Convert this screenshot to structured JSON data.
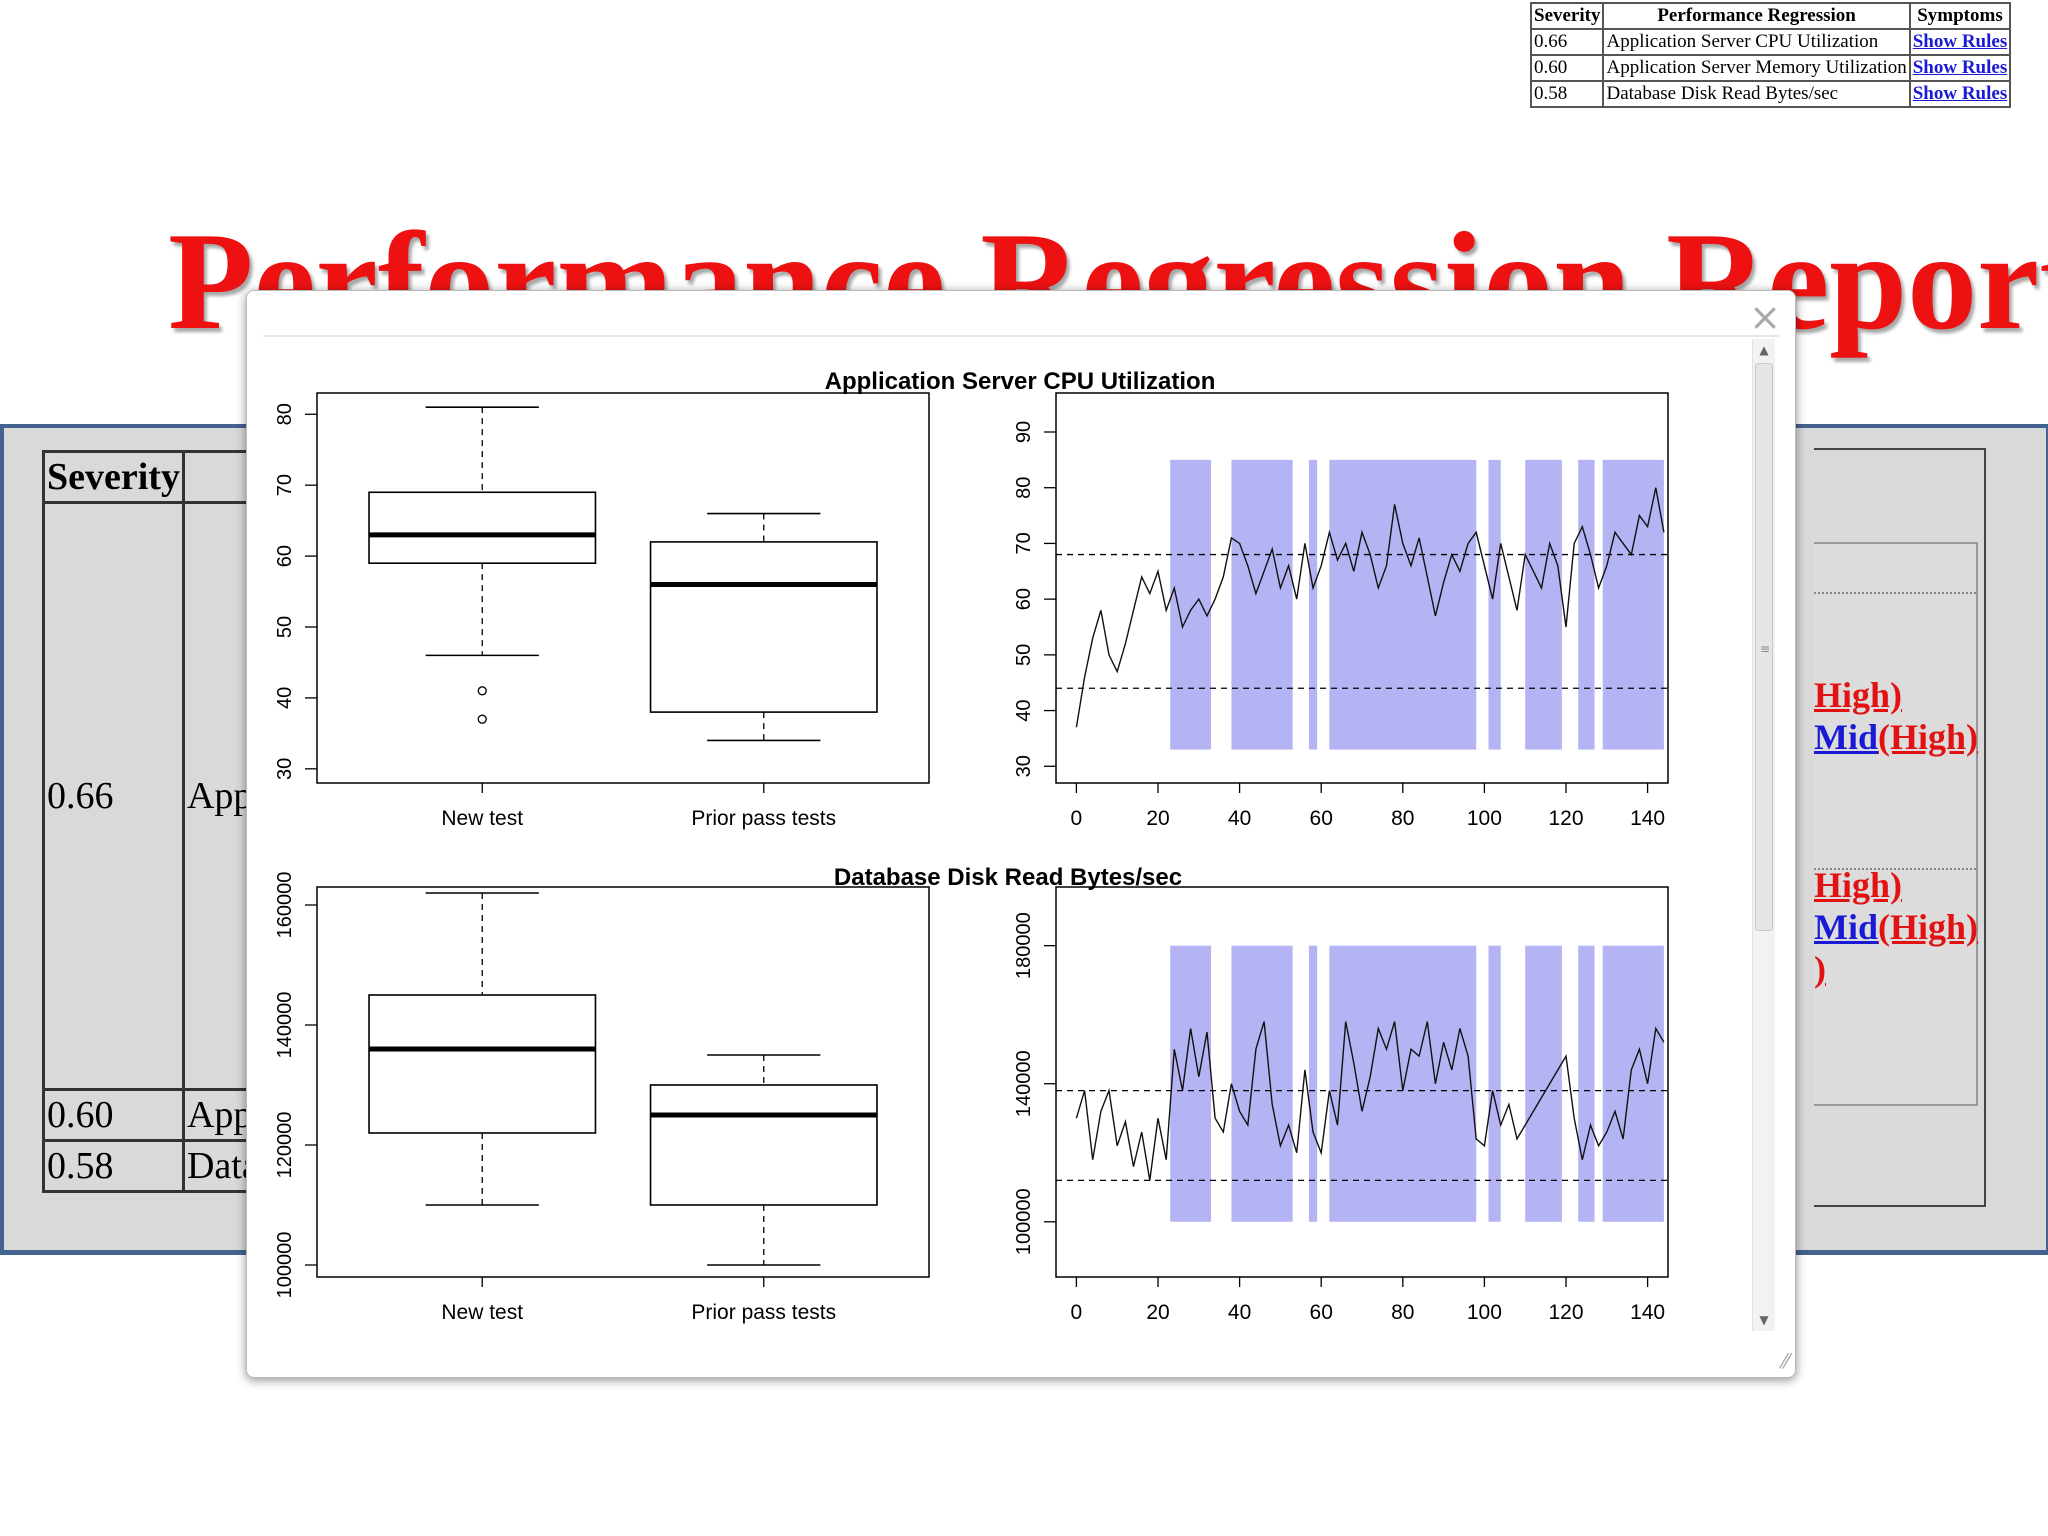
{
  "mini_table": {
    "headers": [
      "Severity",
      "Performance Regression",
      "Symptoms"
    ],
    "rows": [
      {
        "severity": "0.66",
        "name": "Application Server CPU Utilization",
        "link": "Show Rules"
      },
      {
        "severity": "0.60",
        "name": "Application Server Memory Utilization",
        "link": "Show Rules"
      },
      {
        "severity": "0.58",
        "name": "Database Disk Read Bytes/sec",
        "link": "Show Rules"
      }
    ]
  },
  "page_title": "Performance Regression Report",
  "main_table": {
    "header_severity": "Severity",
    "rows": [
      {
        "severity": "0.66",
        "name_fragment": "App"
      },
      {
        "severity": "0.60",
        "name_fragment": "App"
      },
      {
        "severity": "0.58",
        "name_fragment": "Data"
      }
    ]
  },
  "right_links": [
    {
      "text_a": "High)"
    },
    {
      "text_a": "Mid",
      "text_b": "(High)"
    },
    {
      "text_a": "High)"
    },
    {
      "text_a": "Mid",
      "text_b": "(High)"
    },
    {
      "text_a": ")"
    }
  ],
  "dialog": {
    "close_glyph": "×",
    "scroll_up_glyph": "▲",
    "scroll_down_glyph": "▼",
    "grip_glyph": "≡",
    "resize_glyph": "⁄⁄"
  },
  "colors": {
    "title_red": "#ee1111",
    "link_blue": "#1a1ad6",
    "shade": "#b4b4f4",
    "panel_border": "#44628f"
  },
  "chart_data": [
    {
      "type": "boxplot",
      "title": "Application Server CPU Utilization",
      "categories": [
        "New test",
        "Prior pass tests"
      ],
      "boxes": [
        {
          "min": 46,
          "q1": 59,
          "median": 63,
          "q3": 69,
          "max": 81,
          "outliers": [
            41,
            37
          ]
        },
        {
          "min": 34,
          "q1": 38,
          "median": 56,
          "q3": 62,
          "max": 66,
          "outliers": []
        }
      ],
      "ylim": [
        28,
        83
      ],
      "yticks": [
        30,
        40,
        50,
        60,
        70,
        80
      ]
    },
    {
      "type": "line",
      "title": "Application Server CPU Utilization",
      "xlim": [
        -5,
        145
      ],
      "ylim": [
        27,
        97
      ],
      "xticks": [
        0,
        20,
        40,
        60,
        80,
        100,
        120,
        140
      ],
      "yticks": [
        30,
        40,
        50,
        60,
        70,
        80,
        90
      ],
      "hlines": [
        68,
        44
      ],
      "shaded_ranges": [
        [
          23,
          33
        ],
        [
          38,
          53
        ],
        [
          57,
          59
        ],
        [
          62,
          98
        ],
        [
          101,
          104
        ],
        [
          110,
          119
        ],
        [
          123,
          127
        ],
        [
          129,
          144
        ]
      ],
      "shade_y": [
        33,
        85
      ],
      "x": [
        0,
        2,
        4,
        6,
        8,
        10,
        12,
        14,
        16,
        18,
        20,
        22,
        24,
        26,
        28,
        30,
        32,
        34,
        36,
        38,
        40,
        42,
        44,
        46,
        48,
        50,
        52,
        54,
        56,
        58,
        60,
        62,
        64,
        66,
        68,
        70,
        72,
        74,
        76,
        78,
        80,
        82,
        84,
        86,
        88,
        90,
        92,
        94,
        96,
        98,
        100,
        102,
        104,
        106,
        108,
        110,
        112,
        114,
        116,
        118,
        120,
        122,
        124,
        126,
        128,
        130,
        132,
        134,
        136,
        138,
        140,
        142,
        144
      ],
      "y": [
        37,
        46,
        53,
        58,
        50,
        47,
        52,
        58,
        64,
        61,
        65,
        58,
        62,
        55,
        58,
        60,
        57,
        60,
        64,
        71,
        70,
        66,
        61,
        65,
        69,
        62,
        66,
        60,
        70,
        62,
        66,
        72,
        67,
        70,
        65,
        72,
        68,
        62,
        66,
        77,
        70,
        66,
        71,
        64,
        57,
        63,
        68,
        65,
        70,
        72,
        66,
        60,
        70,
        64,
        58,
        68,
        65,
        62,
        70,
        66,
        55,
        70,
        73,
        68,
        62,
        66,
        72,
        70,
        68,
        75,
        73,
        80,
        72
      ]
    },
    {
      "type": "boxplot",
      "title": "Database Disk Read Bytes/sec",
      "categories": [
        "New test",
        "Prior pass tests"
      ],
      "boxes": [
        {
          "min": 110000,
          "q1": 122000,
          "median": 136000,
          "q3": 145000,
          "max": 162000,
          "outliers": []
        },
        {
          "min": 100000,
          "q1": 110000,
          "median": 125000,
          "q3": 130000,
          "max": 135000,
          "outliers": []
        }
      ],
      "ylim": [
        98000,
        163000
      ],
      "yticks": [
        100000,
        120000,
        140000,
        160000
      ]
    },
    {
      "type": "line",
      "title": "Database Disk Read Bytes/sec",
      "xlim": [
        -5,
        145
      ],
      "ylim": [
        84000,
        197000
      ],
      "xticks": [
        0,
        20,
        40,
        60,
        80,
        100,
        120,
        140
      ],
      "yticks": [
        100000,
        140000,
        180000
      ],
      "hlines": [
        138000,
        112000
      ],
      "shaded_ranges": [
        [
          23,
          33
        ],
        [
          38,
          53
        ],
        [
          57,
          59
        ],
        [
          62,
          98
        ],
        [
          101,
          104
        ],
        [
          110,
          119
        ],
        [
          123,
          127
        ],
        [
          129,
          144
        ]
      ],
      "shade_y": [
        100000,
        180000
      ],
      "x": [
        0,
        2,
        4,
        6,
        8,
        10,
        12,
        14,
        16,
        18,
        20,
        22,
        24,
        26,
        28,
        30,
        32,
        34,
        36,
        38,
        40,
        42,
        44,
        46,
        48,
        50,
        52,
        54,
        56,
        58,
        60,
        62,
        64,
        66,
        68,
        70,
        72,
        74,
        76,
        78,
        80,
        82,
        84,
        86,
        88,
        90,
        92,
        94,
        96,
        98,
        100,
        102,
        104,
        106,
        108,
        120,
        122,
        124,
        126,
        128,
        130,
        132,
        134,
        136,
        138,
        140,
        142,
        144
      ],
      "y": [
        130000,
        138000,
        118000,
        132000,
        138000,
        122000,
        129000,
        116000,
        126000,
        112000,
        130000,
        118000,
        150000,
        138000,
        156000,
        142000,
        155000,
        130000,
        126000,
        140000,
        132000,
        128000,
        150000,
        158000,
        134000,
        122000,
        128000,
        120000,
        144000,
        126000,
        120000,
        138000,
        128000,
        158000,
        146000,
        132000,
        142000,
        156000,
        150000,
        158000,
        138000,
        150000,
        148000,
        158000,
        140000,
        152000,
        144000,
        156000,
        148000,
        124000,
        122000,
        138000,
        128000,
        134000,
        124000,
        148000,
        130000,
        118000,
        128000,
        122000,
        126000,
        132000,
        124000,
        144000,
        150000,
        140000,
        156000,
        152000
      ]
    }
  ]
}
